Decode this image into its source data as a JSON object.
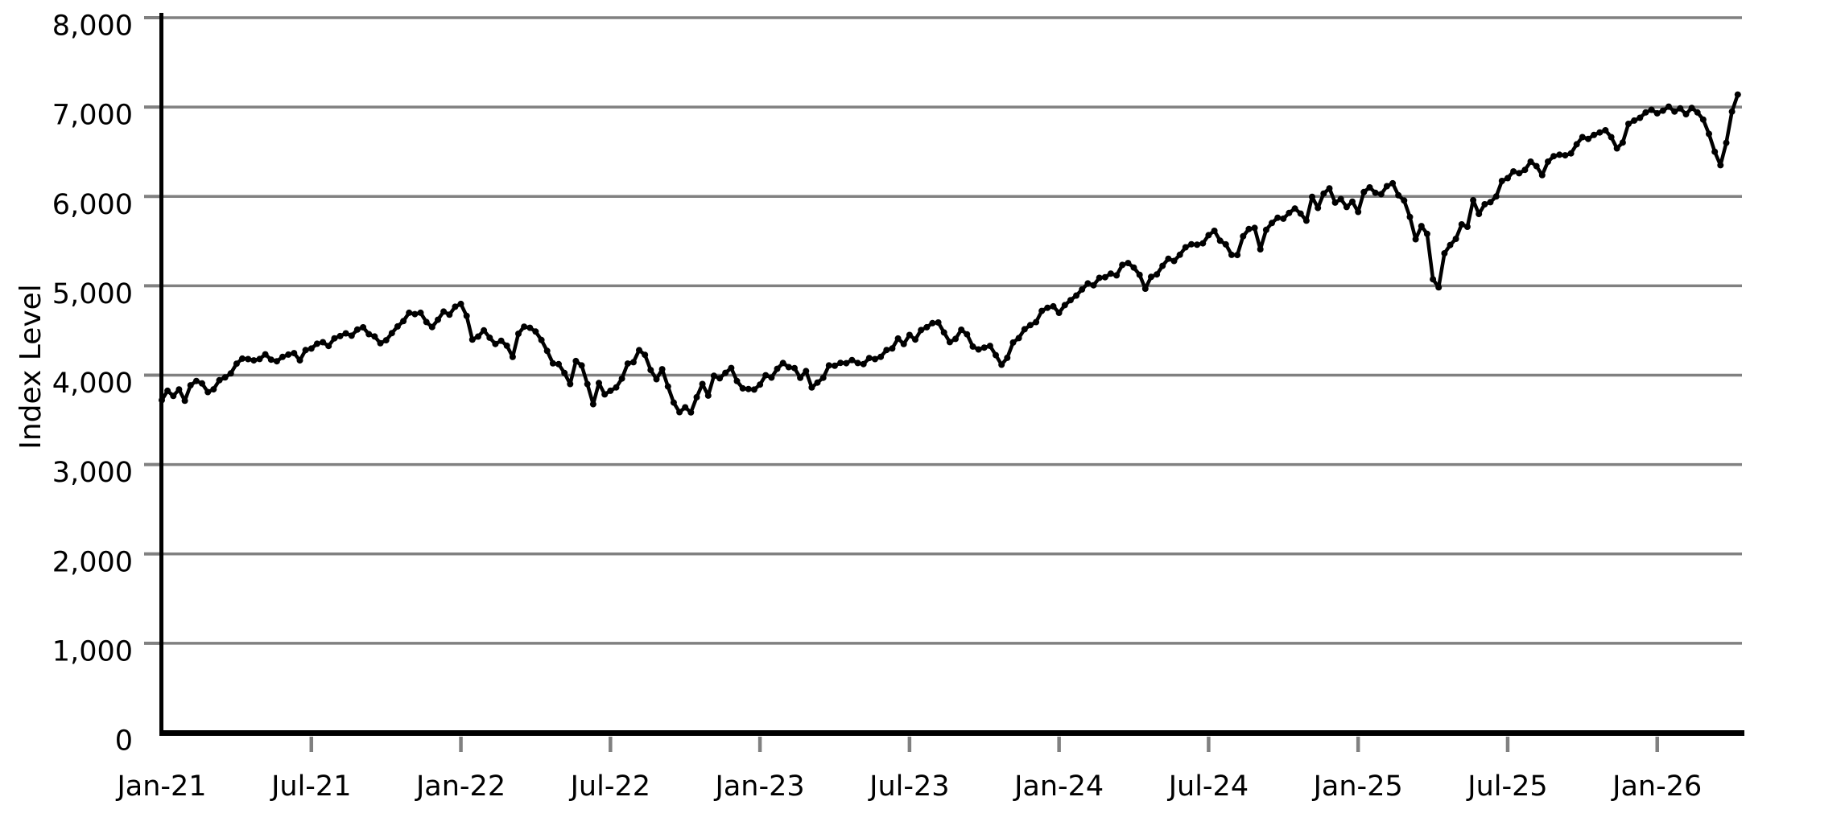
{
  "chart_data": {
    "type": "line",
    "title": "",
    "xlabel": "",
    "ylabel": "Index Level",
    "grid": "horizontal",
    "legend": "none",
    "xlim_months": [
      0,
      63.4
    ],
    "ylim": [
      0,
      8000
    ],
    "x_tick_months": [
      0,
      6,
      12,
      18,
      24,
      30,
      36,
      42,
      48,
      54,
      60
    ],
    "x_tick_labels": [
      "Jan-21",
      "Jul-21",
      "Jan-22",
      "Jul-22",
      "Jan-23",
      "Jul-23",
      "Jan-24",
      "Jul-24",
      "Jan-25",
      "Jul-25",
      "Jan-26"
    ],
    "y_tick_values": [
      0,
      1000,
      2000,
      3000,
      4000,
      5000,
      6000,
      7000,
      8000
    ],
    "y_tick_labels": [
      "0",
      "1,000",
      "2,000",
      "3,000",
      "4,000",
      "5,000",
      "6,000",
      "7,000",
      "8,000"
    ],
    "style": {
      "line_color": "#000000",
      "grid_color": "#808080",
      "tick_color": "#808080",
      "axis_color": "#000000",
      "background": "#ffffff"
    },
    "series": [
      {
        "name": "Index Level",
        "x_unit": "months since Jan-2021",
        "x_start_month": 0,
        "x_step_months": 0.230769,
        "values": [
          3720,
          3825,
          3768,
          3841,
          3714,
          3887,
          3935,
          3907,
          3811,
          3842,
          3943,
          3975,
          4020,
          4129,
          4185,
          4180,
          4166,
          4181,
          4233,
          4174,
          4156,
          4204,
          4230,
          4247,
          4166,
          4281,
          4298,
          4352,
          4369,
          4327,
          4412,
          4437,
          4468,
          4442,
          4510,
          4535,
          4459,
          4433,
          4357,
          4391,
          4471,
          4545,
          4605,
          4698,
          4683,
          4698,
          4595,
          4538,
          4620,
          4712,
          4677,
          4766,
          4797,
          4663,
          4398,
          4432,
          4501,
          4419,
          4349,
          4385,
          4329,
          4204,
          4463,
          4543,
          4530,
          4488,
          4393,
          4272,
          4132,
          4123,
          4024,
          3901,
          4158,
          4109,
          3900,
          3675,
          3912,
          3785,
          3825,
          3863,
          3962,
          4130,
          4145,
          4280,
          4228,
          4058,
          3955,
          4067,
          3873,
          3693,
          3586,
          3640,
          3583,
          3753,
          3901,
          3771,
          3993,
          3965,
          4026,
          4080,
          3934,
          3852,
          3845,
          3839,
          3895,
          3999,
          3973,
          4071,
          4136,
          4090,
          4079,
          3970,
          4046,
          3862,
          3917,
          3971,
          4109,
          4105,
          4138,
          4134,
          4169,
          4136,
          4124,
          4192,
          4180,
          4205,
          4282,
          4299,
          4410,
          4348,
          4450,
          4399,
          4505,
          4536,
          4582,
          4589,
          4478,
          4370,
          4406,
          4508,
          4457,
          4320,
          4288,
          4309,
          4328,
          4224,
          4117,
          4194,
          4365,
          4415,
          4514,
          4560,
          4594,
          4719,
          4754,
          4770,
          4697,
          4784,
          4840,
          4891,
          4959,
          5027,
          5006,
          5089,
          5096,
          5137,
          5117,
          5234,
          5254,
          5204,
          5123,
          4967,
          5100,
          5128,
          5223,
          5303,
          5278,
          5347,
          5431,
          5465,
          5460,
          5475,
          5567,
          5615,
          5505,
          5463,
          5346,
          5344,
          5554,
          5635,
          5648,
          5408,
          5626,
          5703,
          5762,
          5751,
          5815,
          5865,
          5808,
          5729,
          5996,
          5871,
          6032,
          6090,
          5931,
          5971,
          5882,
          5942,
          5827,
          6049,
          6101,
          6041,
          6026,
          6115,
          6147,
          6013,
          5955,
          5770,
          5521,
          5668,
          5581,
          5074,
          4983,
          5363,
          5456,
          5525,
          5687,
          5660,
          5958,
          5803,
          5912,
          5936,
          6000,
          6173,
          6205,
          6280,
          6260,
          6297,
          6389,
          6339,
          6238,
          6389,
          6450,
          6467,
          6460,
          6482,
          6584,
          6664,
          6644,
          6688,
          6716,
          6740,
          6664,
          6538,
          6603,
          6812,
          6849,
          6880,
          6940,
          6970,
          6930,
          6960,
          7005,
          6950,
          6985,
          6920,
          6990,
          6940,
          6860,
          6700,
          6500,
          6350,
          6600,
          6950,
          7140
        ]
      }
    ]
  }
}
